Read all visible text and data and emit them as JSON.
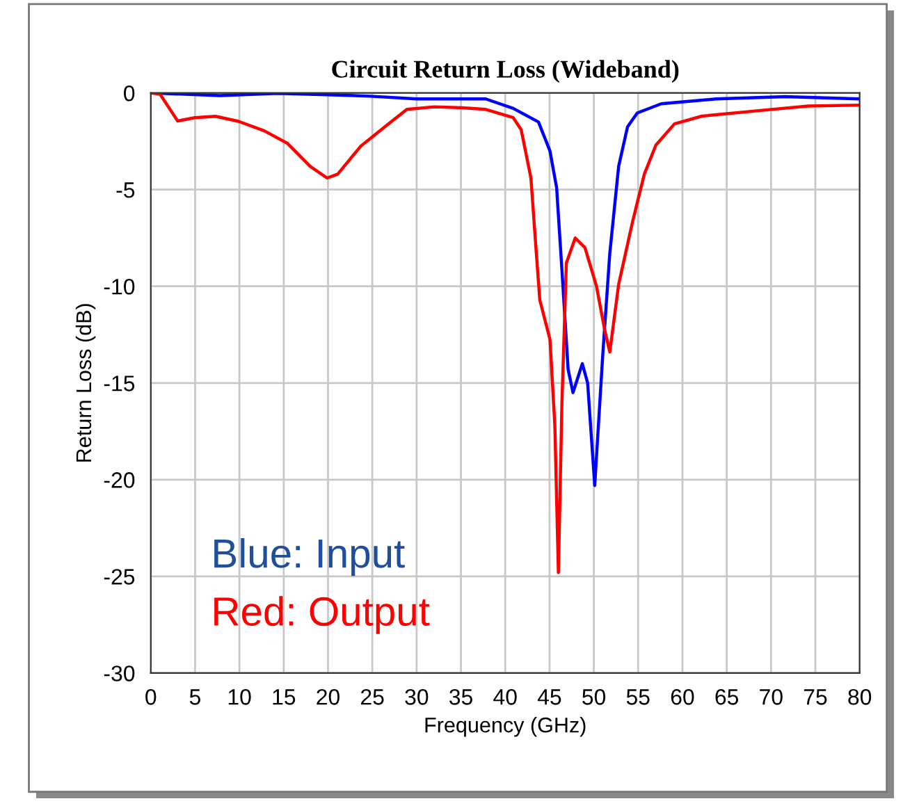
{
  "chart_data": {
    "type": "line",
    "title": "Circuit Return Loss (Wideband)",
    "xlabel": "Frequency (GHz)",
    "ylabel": "Return Loss (dB)",
    "annotations": [
      "Blue: Input",
      "Red: Output"
    ],
    "series": [
      {
        "color": "#0000ff",
        "x": [
          0,
          3.9,
          7.8,
          14.3,
          20.6,
          24.8,
          30.0,
          35.2,
          37.8,
          40.9,
          43.75,
          45.05,
          45.8,
          46.35,
          47.1,
          47.65,
          48.7,
          49.3,
          50.1,
          51.0,
          51.8,
          52.8,
          53.8,
          54.9,
          57.6,
          63.8,
          71.6,
          80
        ],
        "values": [
          0,
          -0.07,
          -0.14,
          -0.02,
          -0.1,
          -0.17,
          -0.31,
          -0.31,
          -0.31,
          -0.8,
          -1.5,
          -3.0,
          -4.9,
          -8.8,
          -14.3,
          -15.5,
          -14.0,
          -15.0,
          -20.3,
          -13.6,
          -8.3,
          -3.8,
          -1.76,
          -1.04,
          -0.56,
          -0.31,
          -0.19,
          -0.31
        ]
      },
      {
        "color": "#ff0000",
        "x": [
          0,
          1.05,
          3.03,
          4.96,
          7.3,
          9.9,
          12.8,
          15.4,
          18.0,
          19.9,
          21.1,
          23.7,
          26.3,
          28.9,
          32.0,
          35.2,
          37.8,
          40.9,
          41.8,
          42.9,
          43.4,
          43.9,
          45.05,
          45.6,
          46.0,
          46.4,
          46.9,
          47.9,
          49.0,
          50.3,
          51.2,
          51.8,
          52.8,
          54.4,
          55.7,
          57.0,
          59.1,
          62.2,
          69.0,
          74.2,
          80
        ],
        "values": [
          0,
          -0.07,
          -1.45,
          -1.28,
          -1.21,
          -1.47,
          -1.96,
          -2.6,
          -3.8,
          -4.4,
          -4.2,
          -2.75,
          -1.79,
          -0.85,
          -0.72,
          -0.77,
          -0.85,
          -1.28,
          -1.9,
          -4.4,
          -7.6,
          -10.7,
          -12.75,
          -17.2,
          -24.8,
          -16.0,
          -8.8,
          -7.5,
          -8.0,
          -10.0,
          -12.2,
          -13.4,
          -9.9,
          -6.6,
          -4.2,
          -2.7,
          -1.6,
          -1.2,
          -0.9,
          -0.68,
          -0.63
        ]
      }
    ],
    "xlim": [
      0,
      80
    ],
    "xticks": [
      0,
      5,
      10,
      15,
      20,
      25,
      30,
      35,
      40,
      45,
      50,
      55,
      60,
      65,
      70,
      75,
      80
    ],
    "ylim": [
      -30,
      0
    ],
    "yticks": [
      -30,
      -25,
      -20,
      -15,
      -10,
      -5,
      0
    ],
    "grid": true,
    "legend": false
  }
}
